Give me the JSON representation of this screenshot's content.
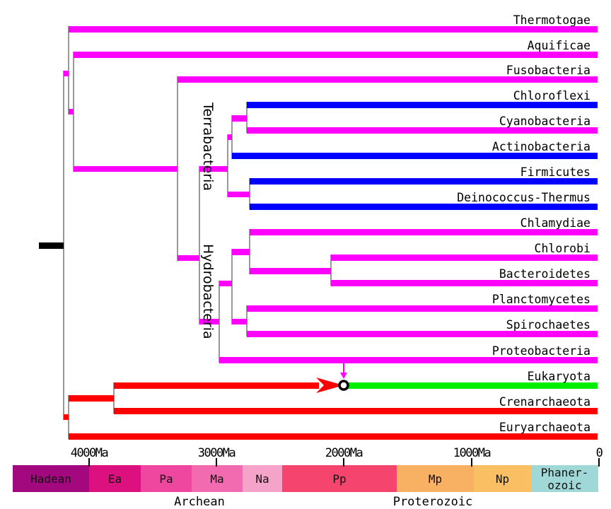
{
  "colors": {
    "bacteria": "#ff00ff",
    "terrabacteria_highlight": "#0000ff",
    "archaea": "#ff0000",
    "eukaryota": "#00ee00",
    "root": "#000000",
    "edge": "#777777"
  },
  "taxa": [
    {
      "label": "Thermotogae",
      "color": "#ff00ff"
    },
    {
      "label": "Aquificae",
      "color": "#ff00ff"
    },
    {
      "label": "Fusobacteria",
      "color": "#ff00ff"
    },
    {
      "label": "Chloroflexi",
      "color": "#0000ff"
    },
    {
      "label": "Cyanobacteria",
      "color": "#ff00ff"
    },
    {
      "label": "Actinobacteria",
      "color": "#0000ff"
    },
    {
      "label": "Firmicutes",
      "color": "#0000ff"
    },
    {
      "label": "Deinococcus-Thermus",
      "color": "#0000ff"
    },
    {
      "label": "Chlamydiae",
      "color": "#ff00ff"
    },
    {
      "label": "Chlorobi",
      "color": "#ff00ff"
    },
    {
      "label": "Bacteroidetes",
      "color": "#ff00ff"
    },
    {
      "label": "Planctomycetes",
      "color": "#ff00ff"
    },
    {
      "label": "Spirochaetes",
      "color": "#ff00ff"
    },
    {
      "label": "Proteobacteria",
      "color": "#ff00ff"
    },
    {
      "label": "Eukaryota",
      "color": "#00ee00"
    },
    {
      "label": "Crenarchaeota",
      "color": "#ff0000"
    },
    {
      "label": "Euryarchaeota",
      "color": "#ff0000"
    }
  ],
  "clades": {
    "terrabacteria": "Terrabacteria",
    "hydrobacteria": "Hydrobacteria"
  },
  "axis": {
    "ticks": [
      "4000Ma",
      "3000Ma",
      "2000Ma",
      "1000Ma",
      "0"
    ]
  },
  "timescale": {
    "segments": [
      {
        "label": "Hadean",
        "color": "#a3087e"
      },
      {
        "label": "Ea",
        "color": "#dc117f"
      },
      {
        "label": "Pa",
        "color": "#ef46a0"
      },
      {
        "label": "Ma",
        "color": "#f26bb1"
      },
      {
        "label": "Na",
        "color": "#f6a3c9"
      },
      {
        "label": "Pp",
        "color": "#f5446e"
      },
      {
        "label": "Mp",
        "color": "#f8b063"
      },
      {
        "label": "Np",
        "color": "#f9bf62"
      },
      {
        "label_line1": "Phaner-",
        "label_line2": "ozoic",
        "color": "#a0d8d8"
      }
    ],
    "eons": [
      "Archean",
      "Proterozoic"
    ]
  }
}
